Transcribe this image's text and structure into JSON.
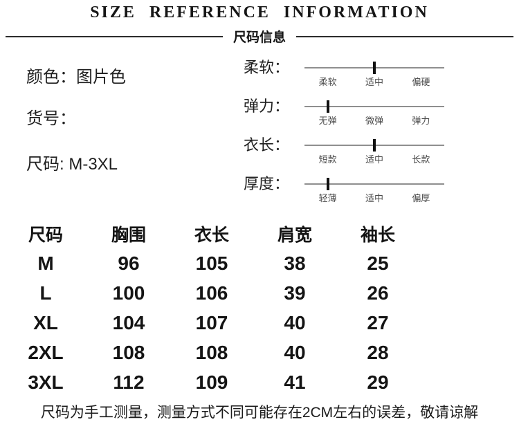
{
  "header": {
    "title": "SIZE  REFERENCE  INFORMATION",
    "subtitle": "尺码信息"
  },
  "product_info": {
    "color": "颜色：图片色",
    "item_no": "货号：",
    "size_range": "尺码: M-3XL"
  },
  "attribute_scales": [
    {
      "name": "softness",
      "label": "柔软：",
      "ticks": [
        "柔软",
        "适中",
        "偏硬"
      ],
      "marker_percent": 50
    },
    {
      "name": "elasticity",
      "label": "弹力：",
      "ticks": [
        "无弹",
        "微弹",
        "弹力"
      ],
      "marker_percent": 17
    },
    {
      "name": "garment-length",
      "label": "衣长：",
      "ticks": [
        "短款",
        "适中",
        "长款"
      ],
      "marker_percent": 50
    },
    {
      "name": "thickness",
      "label": "厚度：",
      "ticks": [
        "轻薄",
        "适中",
        "偏厚"
      ],
      "marker_percent": 17
    }
  ],
  "size_table": {
    "columns": [
      "尺码",
      "胸围",
      "衣长",
      "肩宽",
      "袖长"
    ],
    "rows": [
      [
        "M",
        "96",
        "105",
        "38",
        "25"
      ],
      [
        "L",
        "100",
        "106",
        "39",
        "26"
      ],
      [
        "XL",
        "104",
        "107",
        "40",
        "27"
      ],
      [
        "2XL",
        "108",
        "108",
        "40",
        "28"
      ],
      [
        "3XL",
        "112",
        "109",
        "41",
        "29"
      ]
    ]
  },
  "disclaimer": "尺码为手工测量，测量方式不同可能存在2CM左右的误差，敬请谅解",
  "colors": {
    "background": "#ffffff",
    "text": "#1a1a1a",
    "divider_line": "#2b2b2b",
    "scale_track": "#8f8f8f",
    "scale_marker": "#111111",
    "tick_label": "#4a4a4a"
  }
}
